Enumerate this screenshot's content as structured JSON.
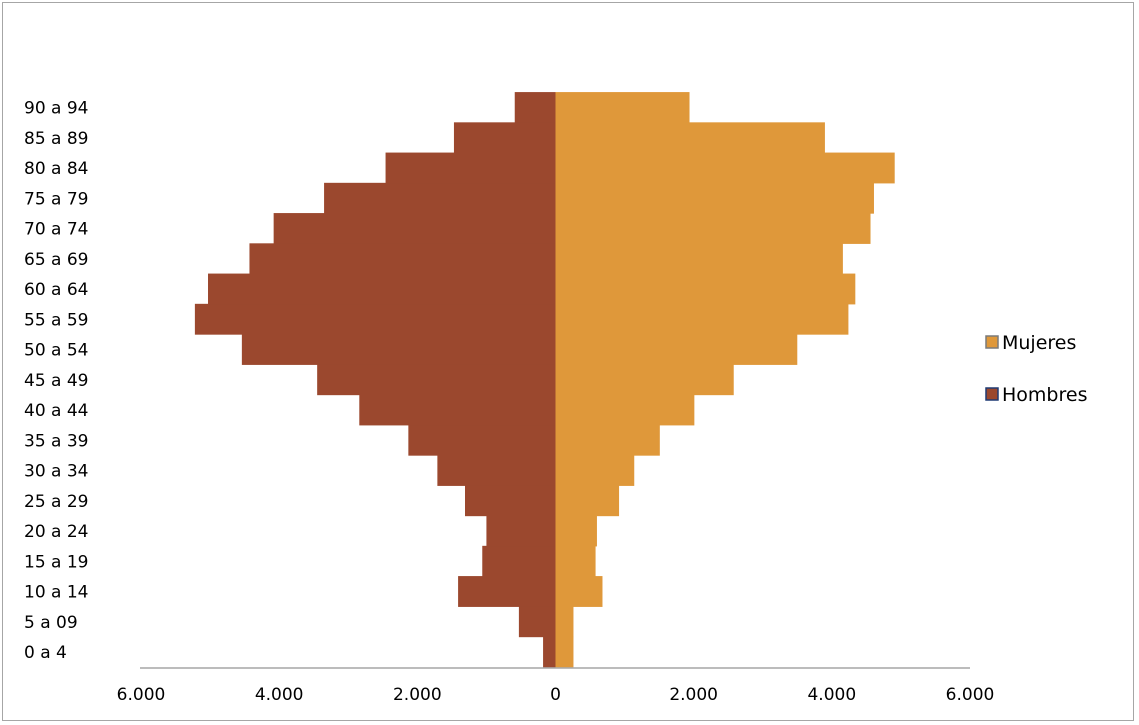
{
  "chart_data": {
    "type": "bar",
    "orientation": "horizontal",
    "layout": "population-pyramid",
    "categories": [
      "0 a 4",
      "5 a 09",
      "10 a 14",
      "15 a 19",
      "20 a 24",
      "25 a 29",
      "30 a 34",
      "35 a 39",
      "40 a 44",
      "45 a 49",
      "50 a 54",
      "55 a 59",
      "60 a 64",
      "65 a 69",
      "70 a 74",
      "75 a 79",
      "80 a 84",
      "85 a 89",
      "90 a 94"
    ],
    "series": [
      {
        "name": "Mujeres",
        "side": "right",
        "color": "#df983a",
        "values": [
          260,
          260,
          680,
          580,
          600,
          920,
          1140,
          1510,
          2010,
          2580,
          3500,
          4240,
          4340,
          4160,
          4560,
          4610,
          4910,
          3900,
          1940
        ]
      },
      {
        "name": "Hombres",
        "side": "left",
        "color": "#9b482e",
        "values": [
          180,
          530,
          1410,
          1060,
          1000,
          1310,
          1710,
          2130,
          2840,
          3450,
          4540,
          5220,
          5030,
          4430,
          4080,
          3350,
          2460,
          1470,
          590
        ]
      }
    ],
    "xlim": [
      -6000,
      6000
    ],
    "x_ticks": [
      -6000,
      -4000,
      -2000,
      0,
      2000,
      4000,
      6000
    ],
    "x_tick_labels": [
      "6.000",
      "4.000",
      "2.000",
      "0",
      "2.000",
      "4.000",
      "6.000"
    ],
    "legend_position": "right",
    "grid": false,
    "xlabel": "",
    "ylabel": "",
    "title": ""
  },
  "legend": {
    "items": [
      {
        "label": "Mujeres",
        "color": "#df983a"
      },
      {
        "label": "Hombres",
        "color": "#9b482e",
        "border": "#1f3a73"
      }
    ]
  },
  "colors": {
    "axis": "#a6a6a6",
    "frame": "#a6a6a6",
    "text": "#000000"
  }
}
